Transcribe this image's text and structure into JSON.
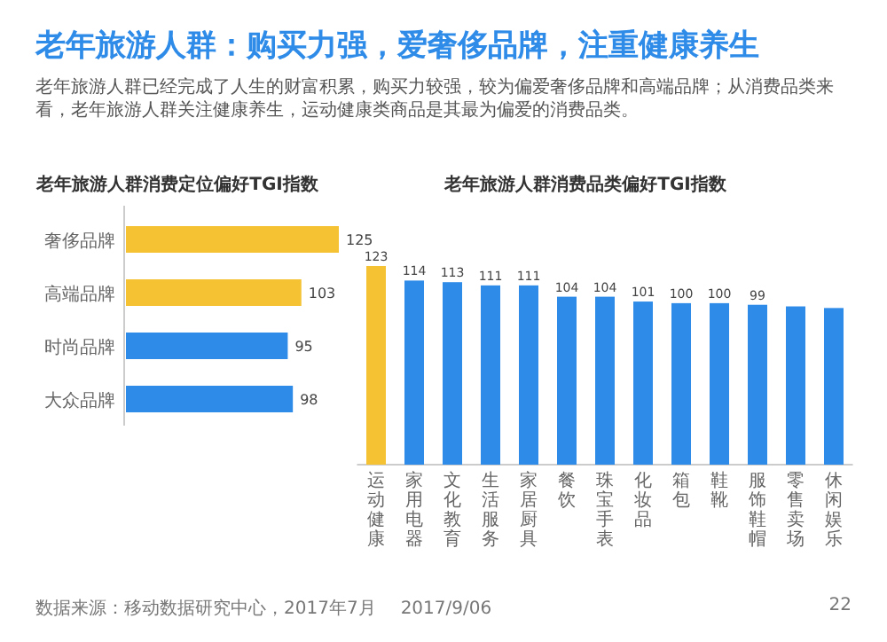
{
  "chart_data": [
    {
      "type": "other",
      "title": "老年旅游人群：购买力强，爱奢侈品牌，注重健康养生",
      "subtitle": "老年旅游人群已经完成了人生的财富积累，购买力较强，较为偏爱奢侈品牌和高端品牌；从消费品类来看，老年旅游人群关注健康养生，运动健康类商品是其最为偏爱的消费品类。",
      "annotations": [
        "数据来源：移动数据研究中心，2017年7月",
        "2017/9/06",
        "22"
      ]
    },
    {
      "type": "bar",
      "orientation": "horizontal",
      "title": "老年旅游人群消费定位偏好TGI指数",
      "categories": [
        "奢侈品牌",
        "高端品牌",
        "时尚品牌",
        "大众品牌"
      ],
      "values": [
        125,
        103,
        95,
        98
      ],
      "colors": [
        "#f5c233",
        "#f5c233",
        "#2e8be8",
        "#2e8be8"
      ],
      "data_labels": true
    },
    {
      "type": "bar",
      "title": "老年旅游人群消费品类偏好TGI指数",
      "categories": [
        "运动健康",
        "家用电器",
        "文化教育",
        "生活服务",
        "家居厨具",
        "餐饮",
        "珠宝手表",
        "化妆品",
        "箱包",
        "鞋靴",
        "服饰鞋帽",
        "零售卖场",
        "休闲娱乐"
      ],
      "values": [
        123,
        114,
        113,
        111,
        111,
        104,
        104,
        101,
        100,
        100,
        99,
        98,
        97
      ],
      "colors": [
        "#f5c233",
        "#2e8be8",
        "#2e8be8",
        "#2e8be8",
        "#2e8be8",
        "#2e8be8",
        "#2e8be8",
        "#2e8be8",
        "#2e8be8",
        "#2e8be8",
        "#2e8be8",
        "#2e8be8",
        "#2e8be8"
      ],
      "value_labels": [
        "123",
        "114",
        "113",
        "111",
        "111",
        "104",
        "104",
        "101",
        "100",
        "100",
        "99",
        null,
        null
      ]
    }
  ]
}
